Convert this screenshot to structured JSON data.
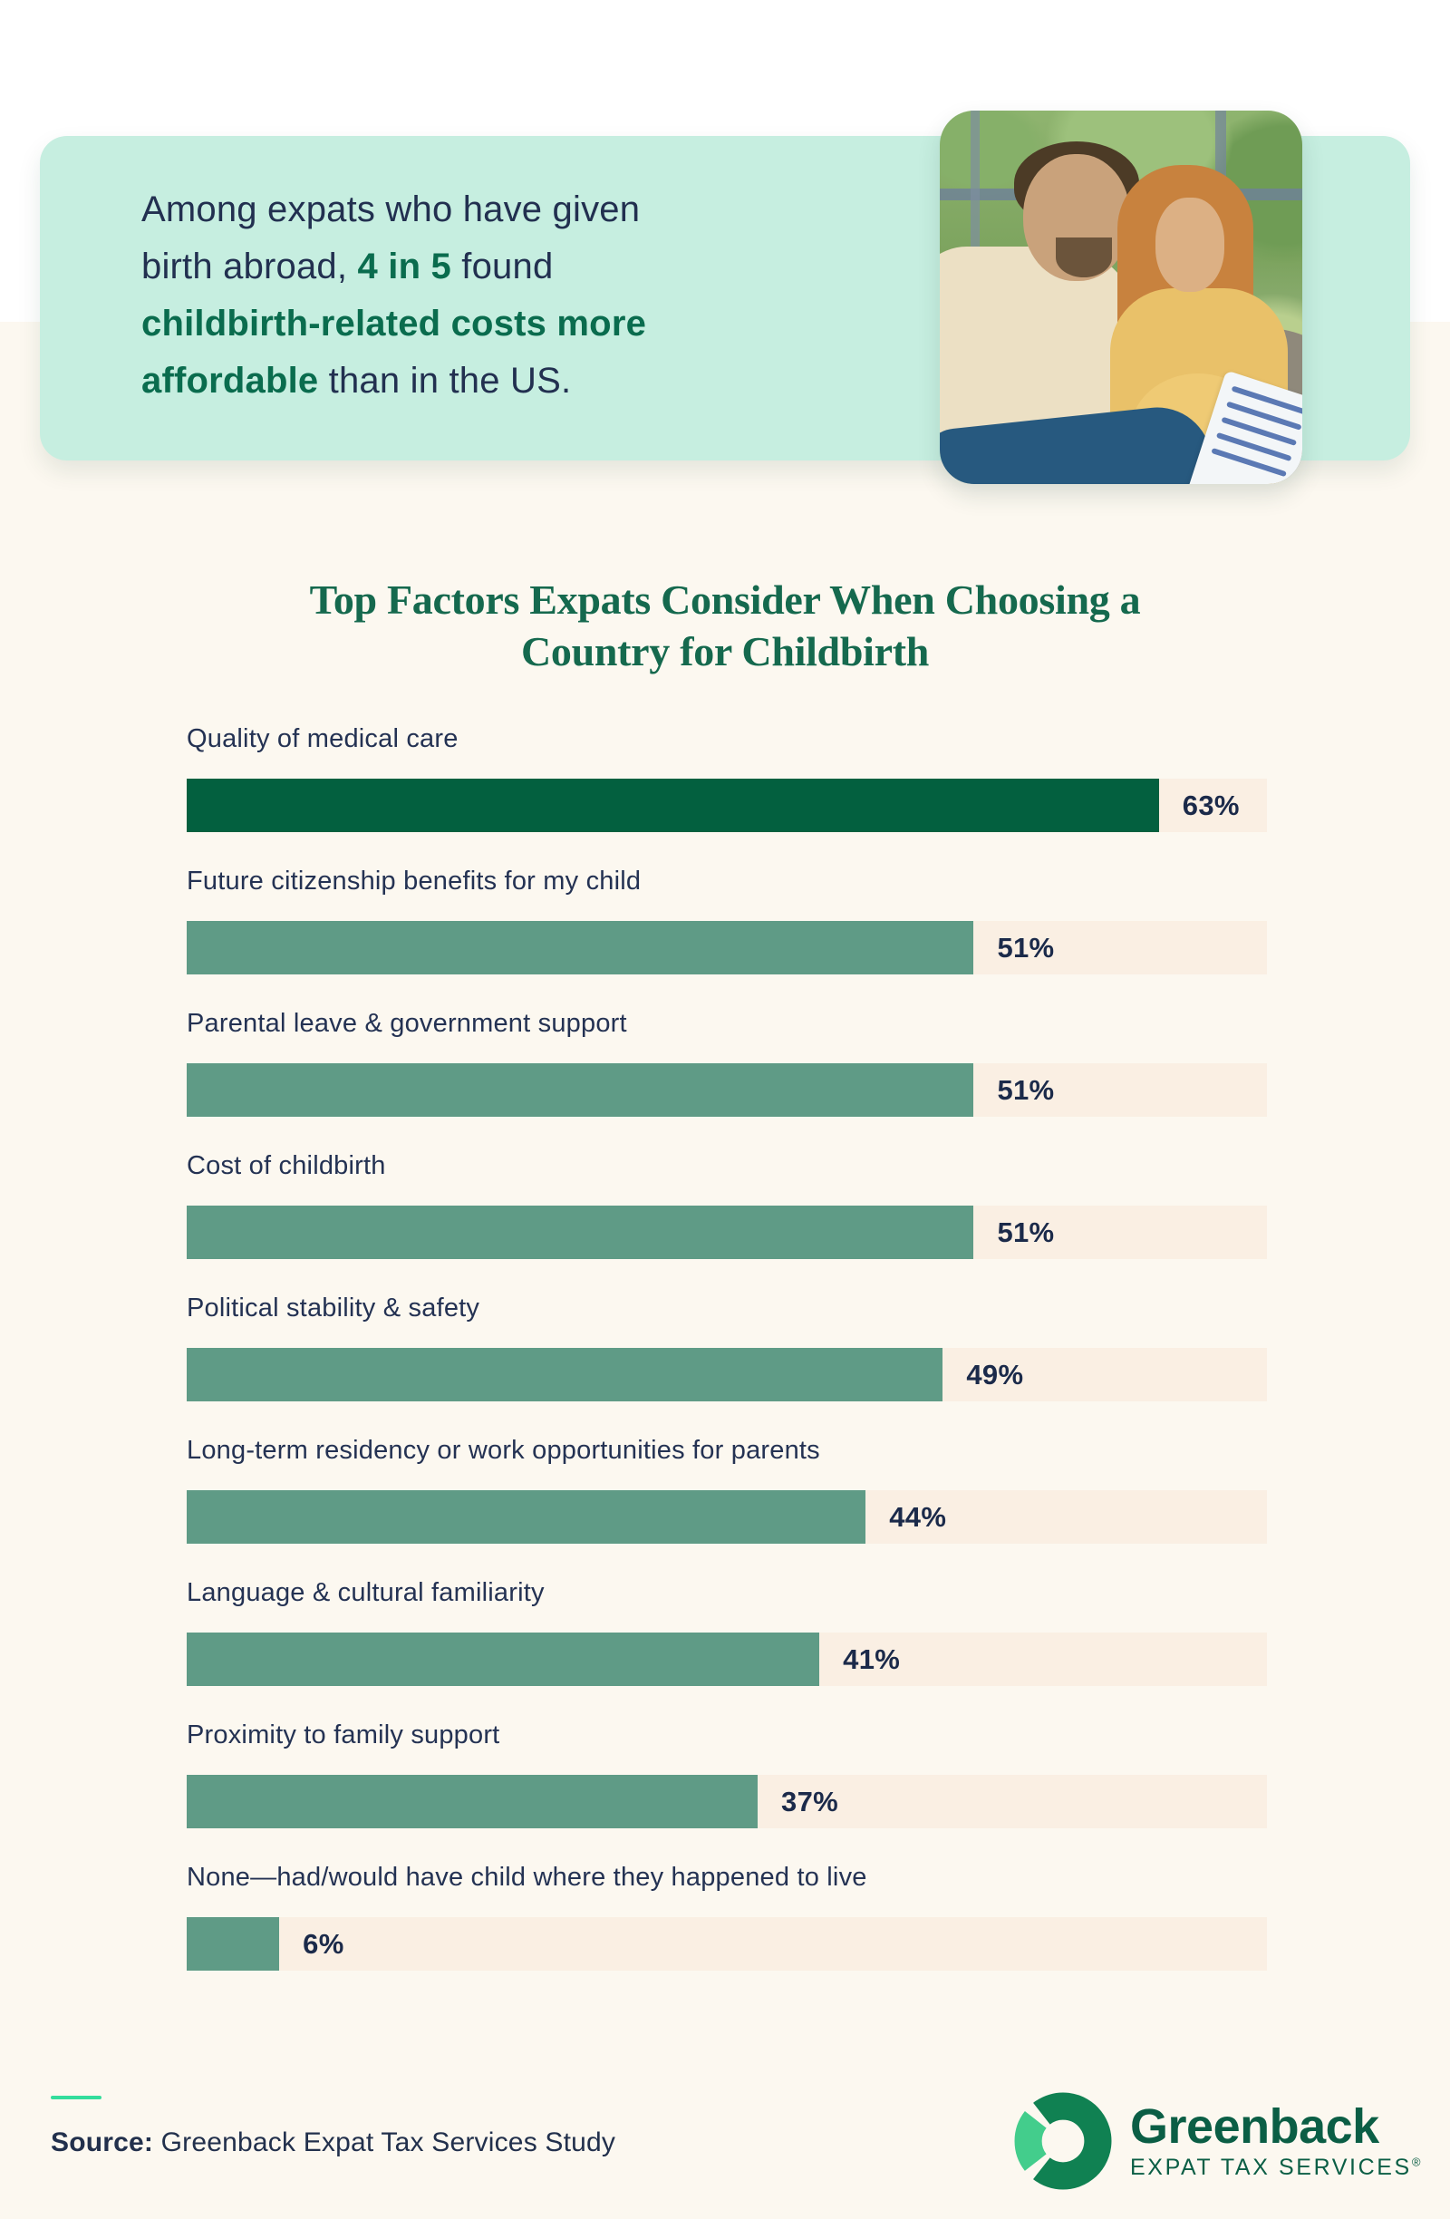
{
  "hero": {
    "card_color": "#c6eee0",
    "lines": [
      {
        "segments": [
          {
            "text": "Among expats who have given"
          }
        ]
      },
      {
        "segments": [
          {
            "text": "birth abroad, "
          },
          {
            "text": "4 in 5"
          },
          {
            "text": " found"
          }
        ]
      },
      {
        "segments": [
          {
            "text": "childbirth-related costs more"
          }
        ]
      },
      {
        "segments": [
          {
            "text": "affordable"
          },
          {
            "text": " than in the US."
          }
        ]
      }
    ],
    "photo": {
      "description": "Couple reading a document together"
    }
  },
  "chart_data": {
    "type": "bar",
    "orientation": "horizontal",
    "title": "Top Factors Expats Consider When Choosing a Country for Childbirth",
    "title_lines": [
      "Top Factors Expats Consider When Choosing a",
      "Country for Childbirth"
    ],
    "categories": [
      "Quality of medical care",
      "Future citizenship benefits for my child",
      "Parental leave & government support",
      "Cost of childbirth",
      "Political stability & safety",
      "Long-term residency or work opportunities for parents",
      "Language & cultural familiarity",
      "Proximity to family support",
      "None—had/would have child where they happened to live"
    ],
    "values": [
      63,
      51,
      51,
      51,
      49,
      44,
      41,
      37,
      6
    ],
    "value_suffix": "%",
    "xlim": [
      0,
      70
    ],
    "grid": false,
    "value_labels": "outside-end",
    "bar_color_first": "#03603f",
    "bar_color_rest": "#5f9b86",
    "track_color": "#faefe3"
  },
  "footer": {
    "source_label": "Source:",
    "source_text": " Greenback Expat Tax Services Study",
    "logo": {
      "name": "Greenback",
      "tagline": "EXPAT TAX SERVICES",
      "registered": "®"
    }
  },
  "colors": {
    "accent_mint": "#c6eee0",
    "accent_green": "#0a6c4e",
    "title_green": "#15694e",
    "navy_text": "#223050",
    "divider_mint": "#34dd9c",
    "logo_green": "#0b5e45",
    "logo_ring_dark": "#108152",
    "logo_ring_light": "#43cd8c"
  }
}
